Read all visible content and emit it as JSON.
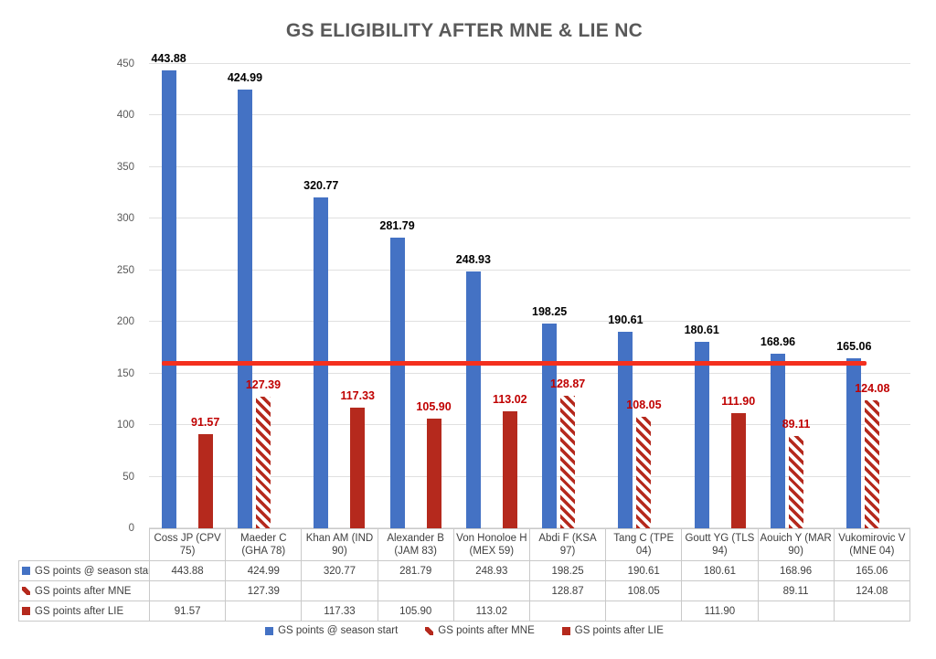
{
  "title": "GS ELIGIBILITY AFTER MNE & LIE NC",
  "chart_data": {
    "type": "bar",
    "title": "GS ELIGIBILITY AFTER MNE & LIE NC",
    "xlabel": "",
    "ylabel": "",
    "categories": [
      "Coss JP (CPV 75)",
      "Maeder C (GHA 78)",
      "Khan AM (IND 90)",
      "Alexander B (JAM 83)",
      "Von Honoloe H (MEX 59)",
      "Abdi F (KSA 97)",
      "Tang C (TPE 04)",
      "Goutt YG (TLS 94)",
      "Aouich Y (MAR 90)",
      "Vukomirovic V (MNE 04)"
    ],
    "series": [
      {
        "name": "GS points @ season start",
        "style": "solid-blue",
        "label_color": "#000000",
        "values": [
          443.88,
          424.99,
          320.77,
          281.79,
          248.93,
          198.25,
          190.61,
          180.61,
          168.96,
          165.06
        ]
      },
      {
        "name": "GS points after MNE",
        "style": "hatched-red",
        "label_color": "#C00000",
        "values": [
          null,
          127.39,
          null,
          null,
          null,
          128.87,
          108.05,
          null,
          89.11,
          124.08
        ]
      },
      {
        "name": "GS points after LIE",
        "style": "solid-red",
        "label_color": "#C00000",
        "values": [
          91.57,
          null,
          117.33,
          105.9,
          113.02,
          null,
          null,
          111.9,
          null,
          null
        ]
      }
    ],
    "threshold_line": {
      "value": 160,
      "color": "#F4301E"
    },
    "y_axis": {
      "min": 0,
      "max": 450,
      "step": 50,
      "ticks": [
        0,
        50,
        100,
        150,
        200,
        250,
        300,
        350,
        400,
        450
      ]
    },
    "ylim": [
      0,
      450
    ],
    "grid": true,
    "legend_position": "bottom",
    "data_table_shown": true,
    "value_decimals": 2
  },
  "colors": {
    "bar_blue": "#4472C4",
    "bar_dark_red": "#B5291D",
    "label_red": "#C00000",
    "threshold_red": "#F4301E",
    "gridline": "#E0E0E0",
    "title_gray": "#595959",
    "axis_text_gray": "#595959",
    "table_border": "#C9C9C9",
    "table_text": "#3F3F3F"
  }
}
